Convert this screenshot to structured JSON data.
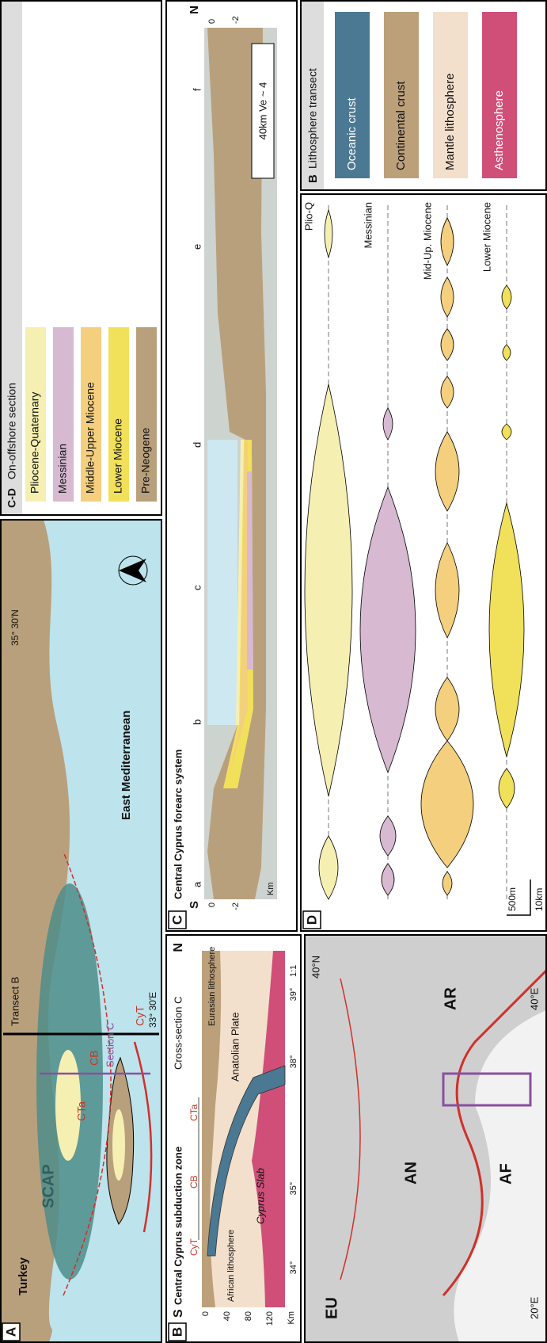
{
  "panels": {
    "a": {
      "label": "A",
      "country": "Turkey",
      "zone": "SCAP",
      "basins": [
        "CTa",
        "CB"
      ],
      "trench": "CyT",
      "sea": "East Mediterranean",
      "transect": "Transect B",
      "section": "Section C",
      "longitude": "33° 30'E",
      "latitude": "35° 30'N"
    },
    "inset": {
      "plates": [
        "EU",
        "AN",
        "AF",
        "AR"
      ],
      "longitudes": [
        "20°E",
        "40°E"
      ],
      "latitude": "40°N"
    },
    "b": {
      "label": "B",
      "title": "Central Cyprus subduction zone",
      "subtitle": "Cross-section C",
      "south": "S",
      "north": "N",
      "depth_ticks": [
        "0",
        "40",
        "80",
        "120"
      ],
      "depth_unit": "Km",
      "latitudes": [
        "34°",
        "35°",
        "38°",
        "39°"
      ],
      "scale": "1:1",
      "markers": [
        "CyT",
        "CB",
        "CTa"
      ],
      "units": [
        "African lithosphere",
        "Cyprus Slab",
        "Anatolian Plate",
        "Eurasian lithosphere"
      ]
    },
    "b_legend": {
      "label": "B",
      "title": "Lithosphere transect",
      "items": [
        {
          "name": "Oceanic crust",
          "color": "#4b7892"
        },
        {
          "name": "Continental crust",
          "color": "#bca07a"
        },
        {
          "name": "Mantle lithosphere",
          "color": "#f3e0cc"
        },
        {
          "name": "Asthenosphere",
          "color": "#cf4f78"
        }
      ]
    },
    "c": {
      "label": "C",
      "title": "Central Cyprus forearc system",
      "south": "S",
      "north": "N",
      "sites": [
        "a",
        "b",
        "c",
        "d",
        "e",
        "f"
      ],
      "depth_ticks_left": [
        "0",
        "-2"
      ],
      "depth_unit": "Km",
      "depth_ticks_right": [
        "0",
        "-2"
      ],
      "scale": "40km Ve ~ 4"
    },
    "d": {
      "label": "D",
      "rows": [
        "Plio-Q",
        "Messinian",
        "Mid-Up. Miocene",
        "Lower Miocene"
      ],
      "scale_vertical": "500m",
      "scale_horizontal": "10km"
    },
    "cd_legend": {
      "label": "C-D",
      "title": "On-offshore section",
      "items": [
        {
          "name": "Pliocene-Quaternary",
          "color": "#f6efb2"
        },
        {
          "name": "Messinian",
          "color": "#d7b9d2"
        },
        {
          "name": "Middle-Upper Miocene",
          "color": "#f4cf7e"
        },
        {
          "name": "Lower Miocene",
          "color": "#f1e05a"
        },
        {
          "name": "Pre-Neogene",
          "color": "#b9a07c"
        }
      ]
    }
  }
}
